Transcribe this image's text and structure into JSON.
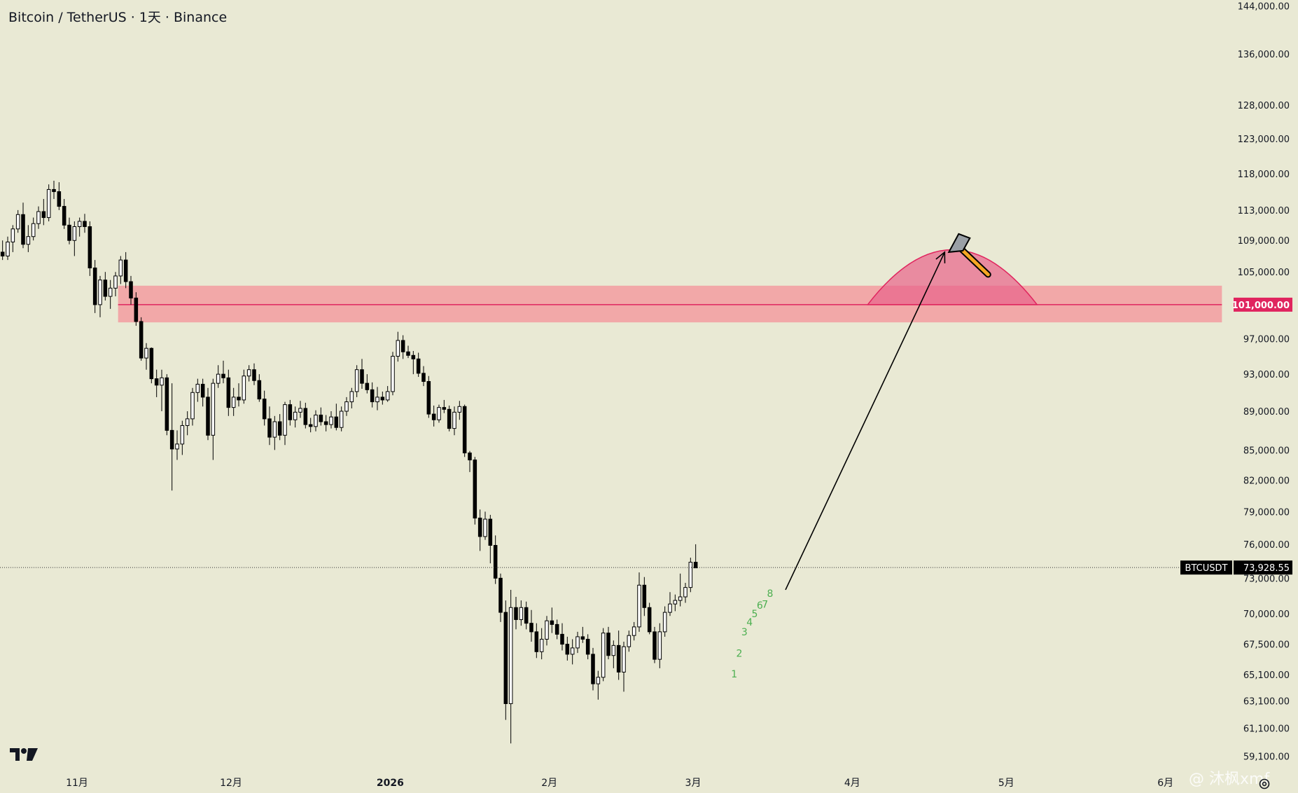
{
  "header": {
    "title": "Bitcoin / TetherUS · 1天 · Binance"
  },
  "watermark": {
    "text": "@ 沐枫xmf",
    "icon": "binance-square-icon"
  },
  "icons": {
    "logo": "tradingview-logo-icon",
    "settings": "settings-icon",
    "hammer": "hammer-icon"
  },
  "colors": {
    "background": "#e9e9d4",
    "candle_up_body": "#ffffff",
    "candle_down_body": "#000000",
    "zone_fill": "#f2a8a8",
    "zone_line": "#e0245e",
    "dome_fill": "#e8628a",
    "price_tag_level": "#e0245e",
    "price_tag_last": "#000000",
    "count_labels": "#4caf50"
  },
  "chart_data": {
    "type": "candlestick",
    "symbol": "BTCUSDT",
    "interval": "1天",
    "exchange": "Binance",
    "y_scale": "log",
    "y_ticks": [
      "144,000.00",
      "136,000.00",
      "128,000.00",
      "123,000.00",
      "118,000.00",
      "113,000.00",
      "109,000.00",
      "105,000.00",
      "97,000.00",
      "93,000.00",
      "89,000.00",
      "85,000.00",
      "82,000.00",
      "79,000.00",
      "76,000.00",
      "73,000.00",
      "70,000.00",
      "67,500.00",
      "65,100.00",
      "63,100.00",
      "61,100.00",
      "59,100.00"
    ],
    "x_ticks": [
      {
        "label": "11月",
        "date": "2025-11-01",
        "bold": false
      },
      {
        "label": "12月",
        "date": "2025-12-01",
        "bold": false
      },
      {
        "label": "2026",
        "date": "2026-01-01",
        "bold": true
      },
      {
        "label": "2月",
        "date": "2026-02-01",
        "bold": false
      },
      {
        "label": "3月",
        "date": "2026-03-01",
        "bold": false
      },
      {
        "label": "4月",
        "date": "2026-04-01",
        "bold": false
      },
      {
        "label": "5月",
        "date": "2026-05-01",
        "bold": false
      },
      {
        "label": "6月",
        "date": "2026-06-01",
        "bold": false
      }
    ],
    "x_start": "2025-10-17",
    "x_end": "2026-06-14",
    "y_range": [
      58000,
      145000
    ],
    "last_price": {
      "label": "BTCUSDT",
      "value": "73,928.55",
      "price": 73928.55
    },
    "resistance_zone": {
      "low": 98900,
      "high": 103300,
      "level_label": "101,000.00",
      "level": 101000,
      "start": "2025-11-09",
      "end": "2026-06-12"
    },
    "dome": {
      "start": "2026-04-04",
      "end": "2026-05-07",
      "base": 101000,
      "peak": 107800
    },
    "projection_arrow": {
      "from": {
        "date": "2026-03-19",
        "price": 72000
      },
      "to": {
        "date": "2026-04-19",
        "price": 107500
      }
    },
    "count_labels": [
      {
        "text": "1",
        "date": "2026-03-09",
        "price": 64900
      },
      {
        "text": "2",
        "date": "2026-03-10",
        "price": 66500
      },
      {
        "text": "3",
        "date": "2026-03-11",
        "price": 68200
      },
      {
        "text": "4",
        "date": "2026-03-12",
        "price": 69000
      },
      {
        "text": "5",
        "date": "2026-03-13",
        "price": 69700
      },
      {
        "text": "6",
        "date": "2026-03-14",
        "price": 70400
      },
      {
        "text": "7",
        "date": "2026-03-15",
        "price": 70500
      },
      {
        "text": "8",
        "date": "2026-03-16",
        "price": 71400
      }
    ],
    "candles": [
      {
        "o": 107500,
        "h": 109000,
        "l": 106500,
        "c": 107000
      },
      {
        "o": 107000,
        "h": 109500,
        "l": 106500,
        "c": 108800
      },
      {
        "o": 108800,
        "h": 111000,
        "l": 107500,
        "c": 110500
      },
      {
        "o": 110500,
        "h": 113000,
        "l": 110000,
        "c": 112400
      },
      {
        "o": 112400,
        "h": 114000,
        "l": 108000,
        "c": 108500
      },
      {
        "o": 108500,
        "h": 111000,
        "l": 107500,
        "c": 109500
      },
      {
        "o": 109500,
        "h": 112000,
        "l": 109000,
        "c": 111200
      },
      {
        "o": 111200,
        "h": 113500,
        "l": 110500,
        "c": 112800
      },
      {
        "o": 112800,
        "h": 114500,
        "l": 111000,
        "c": 112000
      },
      {
        "o": 112000,
        "h": 116500,
        "l": 111500,
        "c": 115800
      },
      {
        "o": 115800,
        "h": 117000,
        "l": 114500,
        "c": 115500
      },
      {
        "o": 115500,
        "h": 116800,
        "l": 113000,
        "c": 113500
      },
      {
        "o": 113500,
        "h": 114500,
        "l": 110500,
        "c": 111000
      },
      {
        "o": 111000,
        "h": 112000,
        "l": 108500,
        "c": 109000
      },
      {
        "o": 109000,
        "h": 111500,
        "l": 107000,
        "c": 110800
      },
      {
        "o": 110800,
        "h": 112000,
        "l": 109500,
        "c": 111500
      },
      {
        "o": 111500,
        "h": 112500,
        "l": 110000,
        "c": 110800
      },
      {
        "o": 110800,
        "h": 111500,
        "l": 104500,
        "c": 105500
      },
      {
        "o": 105500,
        "h": 106500,
        "l": 100000,
        "c": 101000
      },
      {
        "o": 101000,
        "h": 104500,
        "l": 99500,
        "c": 104000
      },
      {
        "o": 104000,
        "h": 105000,
        "l": 101500,
        "c": 102000
      },
      {
        "o": 102000,
        "h": 104000,
        "l": 100500,
        "c": 103000
      },
      {
        "o": 103000,
        "h": 105000,
        "l": 102000,
        "c": 104500
      },
      {
        "o": 104500,
        "h": 107000,
        "l": 103500,
        "c": 106500
      },
      {
        "o": 106500,
        "h": 107500,
        "l": 103000,
        "c": 103800
      },
      {
        "o": 103800,
        "h": 104500,
        "l": 101000,
        "c": 101800
      },
      {
        "o": 101800,
        "h": 102500,
        "l": 98500,
        "c": 99000
      },
      {
        "o": 99000,
        "h": 99500,
        "l": 94500,
        "c": 94800
      },
      {
        "o": 94800,
        "h": 96500,
        "l": 93500,
        "c": 95900
      },
      {
        "o": 95900,
        "h": 96000,
        "l": 92000,
        "c": 92500
      },
      {
        "o": 92500,
        "h": 93500,
        "l": 90500,
        "c": 91800
      },
      {
        "o": 91800,
        "h": 93500,
        "l": 89000,
        "c": 92600
      },
      {
        "o": 92600,
        "h": 93000,
        "l": 86500,
        "c": 87000
      },
      {
        "o": 87000,
        "h": 92000,
        "l": 81000,
        "c": 85100
      },
      {
        "o": 85100,
        "h": 87000,
        "l": 84000,
        "c": 85600
      },
      {
        "o": 85600,
        "h": 88000,
        "l": 84500,
        "c": 87500
      },
      {
        "o": 87500,
        "h": 89000,
        "l": 86500,
        "c": 88200
      },
      {
        "o": 88200,
        "h": 91500,
        "l": 87500,
        "c": 91000
      },
      {
        "o": 91000,
        "h": 92500,
        "l": 90000,
        "c": 91900
      },
      {
        "o": 91900,
        "h": 92500,
        "l": 89500,
        "c": 90500
      },
      {
        "o": 90500,
        "h": 91500,
        "l": 86000,
        "c": 86500
      },
      {
        "o": 86500,
        "h": 92500,
        "l": 84000,
        "c": 92000
      },
      {
        "o": 92000,
        "h": 94000,
        "l": 91500,
        "c": 93000
      },
      {
        "o": 93000,
        "h": 94500,
        "l": 92000,
        "c": 92600
      },
      {
        "o": 92600,
        "h": 93500,
        "l": 88500,
        "c": 89400
      },
      {
        "o": 89400,
        "h": 91500,
        "l": 88500,
        "c": 90500
      },
      {
        "o": 90500,
        "h": 92000,
        "l": 89500,
        "c": 90200
      },
      {
        "o": 90200,
        "h": 93500,
        "l": 89800,
        "c": 92800
      },
      {
        "o": 92800,
        "h": 94000,
        "l": 92200,
        "c": 93500
      },
      {
        "o": 93500,
        "h": 94200,
        "l": 91800,
        "c": 92300
      },
      {
        "o": 92300,
        "h": 93000,
        "l": 90000,
        "c": 90300
      },
      {
        "o": 90300,
        "h": 91200,
        "l": 87500,
        "c": 88200
      },
      {
        "o": 88200,
        "h": 89500,
        "l": 85500,
        "c": 86300
      },
      {
        "o": 86300,
        "h": 88500,
        "l": 85000,
        "c": 87900
      },
      {
        "o": 87900,
        "h": 88700,
        "l": 86000,
        "c": 86500
      },
      {
        "o": 86500,
        "h": 90000,
        "l": 85500,
        "c": 89700
      },
      {
        "o": 89700,
        "h": 90200,
        "l": 87500,
        "c": 88100
      },
      {
        "o": 88100,
        "h": 89500,
        "l": 87300,
        "c": 88900
      },
      {
        "o": 88900,
        "h": 90100,
        "l": 88300,
        "c": 89300
      },
      {
        "o": 89300,
        "h": 89900,
        "l": 87200,
        "c": 87600
      },
      {
        "o": 87600,
        "h": 88300,
        "l": 86800,
        "c": 87400
      },
      {
        "o": 87400,
        "h": 89100,
        "l": 86900,
        "c": 88600
      },
      {
        "o": 88600,
        "h": 89400,
        "l": 87500,
        "c": 87900
      },
      {
        "o": 87900,
        "h": 88600,
        "l": 86900,
        "c": 87600
      },
      {
        "o": 87600,
        "h": 89000,
        "l": 87200,
        "c": 88400
      },
      {
        "o": 88400,
        "h": 89800,
        "l": 87000,
        "c": 87300
      },
      {
        "o": 87300,
        "h": 89500,
        "l": 86900,
        "c": 89000
      },
      {
        "o": 89000,
        "h": 90500,
        "l": 88500,
        "c": 90000
      },
      {
        "o": 90000,
        "h": 91500,
        "l": 89300,
        "c": 91100
      },
      {
        "o": 91100,
        "h": 94000,
        "l": 90500,
        "c": 93500
      },
      {
        "o": 93500,
        "h": 94700,
        "l": 91400,
        "c": 92000
      },
      {
        "o": 92000,
        "h": 93000,
        "l": 90900,
        "c": 91300
      },
      {
        "o": 91300,
        "h": 92100,
        "l": 89400,
        "c": 90000
      },
      {
        "o": 90000,
        "h": 91600,
        "l": 89100,
        "c": 90500
      },
      {
        "o": 90500,
        "h": 91100,
        "l": 89700,
        "c": 90200
      },
      {
        "o": 90200,
        "h": 91700,
        "l": 90000,
        "c": 91100
      },
      {
        "o": 91100,
        "h": 95500,
        "l": 90700,
        "c": 95000
      },
      {
        "o": 95000,
        "h": 97800,
        "l": 94400,
        "c": 96800
      },
      {
        "o": 96800,
        "h": 97400,
        "l": 94700,
        "c": 95500
      },
      {
        "o": 95500,
        "h": 96200,
        "l": 94800,
        "c": 95100
      },
      {
        "o": 95100,
        "h": 95600,
        "l": 93000,
        "c": 94700
      },
      {
        "o": 94700,
        "h": 95400,
        "l": 92700,
        "c": 93100
      },
      {
        "o": 93100,
        "h": 93900,
        "l": 91700,
        "c": 92200
      },
      {
        "o": 92200,
        "h": 92800,
        "l": 88300,
        "c": 88700
      },
      {
        "o": 88700,
        "h": 89600,
        "l": 87400,
        "c": 88100
      },
      {
        "o": 88100,
        "h": 89700,
        "l": 87800,
        "c": 89400
      },
      {
        "o": 89400,
        "h": 90200,
        "l": 88800,
        "c": 89200
      },
      {
        "o": 89200,
        "h": 89600,
        "l": 86900,
        "c": 87200
      },
      {
        "o": 87200,
        "h": 89500,
        "l": 86500,
        "c": 88900
      },
      {
        "o": 88900,
        "h": 90100,
        "l": 88100,
        "c": 89500
      },
      {
        "o": 89500,
        "h": 89700,
        "l": 84300,
        "c": 84700
      },
      {
        "o": 84700,
        "h": 84900,
        "l": 82800,
        "c": 84000
      },
      {
        "o": 84000,
        "h": 84300,
        "l": 77800,
        "c": 78400
      },
      {
        "o": 78400,
        "h": 79200,
        "l": 75400,
        "c": 76700
      },
      {
        "o": 76700,
        "h": 79000,
        "l": 76400,
        "c": 78300
      },
      {
        "o": 78300,
        "h": 78700,
        "l": 74300,
        "c": 75900
      },
      {
        "o": 75900,
        "h": 76800,
        "l": 72500,
        "c": 73000
      },
      {
        "o": 73000,
        "h": 73400,
        "l": 69300,
        "c": 70100
      },
      {
        "o": 70100,
        "h": 71100,
        "l": 61700,
        "c": 62900
      },
      {
        "o": 62900,
        "h": 72000,
        "l": 60000,
        "c": 70500
      },
      {
        "o": 70500,
        "h": 71400,
        "l": 68700,
        "c": 69500
      },
      {
        "o": 69500,
        "h": 71100,
        "l": 69000,
        "c": 70500
      },
      {
        "o": 70500,
        "h": 71000,
        "l": 68700,
        "c": 69200
      },
      {
        "o": 69200,
        "h": 70300,
        "l": 67700,
        "c": 68500
      },
      {
        "o": 68500,
        "h": 69200,
        "l": 66400,
        "c": 66900
      },
      {
        "o": 66900,
        "h": 68800,
        "l": 66300,
        "c": 67900
      },
      {
        "o": 67900,
        "h": 69800,
        "l": 67400,
        "c": 69400
      },
      {
        "o": 69400,
        "h": 70500,
        "l": 68400,
        "c": 69100
      },
      {
        "o": 69100,
        "h": 69500,
        "l": 67900,
        "c": 68300
      },
      {
        "o": 68300,
        "h": 69200,
        "l": 67000,
        "c": 67500
      },
      {
        "o": 67500,
        "h": 68100,
        "l": 66200,
        "c": 66700
      },
      {
        "o": 66700,
        "h": 67900,
        "l": 65900,
        "c": 67200
      },
      {
        "o": 67200,
        "h": 68500,
        "l": 66800,
        "c": 68100
      },
      {
        "o": 68100,
        "h": 68900,
        "l": 67600,
        "c": 67900
      },
      {
        "o": 67900,
        "h": 68300,
        "l": 66300,
        "c": 66700
      },
      {
        "o": 66700,
        "h": 67200,
        "l": 63900,
        "c": 64400
      },
      {
        "o": 64400,
        "h": 65400,
        "l": 63200,
        "c": 64900
      },
      {
        "o": 64900,
        "h": 68800,
        "l": 64600,
        "c": 68400
      },
      {
        "o": 68400,
        "h": 68900,
        "l": 66300,
        "c": 66600
      },
      {
        "o": 66600,
        "h": 67800,
        "l": 65600,
        "c": 67400
      },
      {
        "o": 67400,
        "h": 68600,
        "l": 64700,
        "c": 65300
      },
      {
        "o": 65300,
        "h": 67700,
        "l": 63800,
        "c": 67300
      },
      {
        "o": 67300,
        "h": 68600,
        "l": 66900,
        "c": 68200
      },
      {
        "o": 68200,
        "h": 69300,
        "l": 67800,
        "c": 68900
      },
      {
        "o": 68900,
        "h": 73500,
        "l": 68500,
        "c": 72400
      },
      {
        "o": 72400,
        "h": 73100,
        "l": 69800,
        "c": 70500
      },
      {
        "o": 70500,
        "h": 70900,
        "l": 68300,
        "c": 68500
      },
      {
        "o": 68500,
        "h": 68900,
        "l": 66000,
        "c": 66300
      },
      {
        "o": 66300,
        "h": 69200,
        "l": 65600,
        "c": 68500
      },
      {
        "o": 68500,
        "h": 70600,
        "l": 68100,
        "c": 70100
      },
      {
        "o": 70100,
        "h": 71800,
        "l": 69800,
        "c": 70800
      },
      {
        "o": 70800,
        "h": 71600,
        "l": 70200,
        "c": 71100
      },
      {
        "o": 71100,
        "h": 73400,
        "l": 70600,
        "c": 71400
      },
      {
        "o": 71400,
        "h": 72600,
        "l": 70900,
        "c": 72200
      },
      {
        "o": 72200,
        "h": 74800,
        "l": 71800,
        "c": 74400
      },
      {
        "o": 74400,
        "h": 76000,
        "l": 74200,
        "c": 73900
      }
    ]
  }
}
